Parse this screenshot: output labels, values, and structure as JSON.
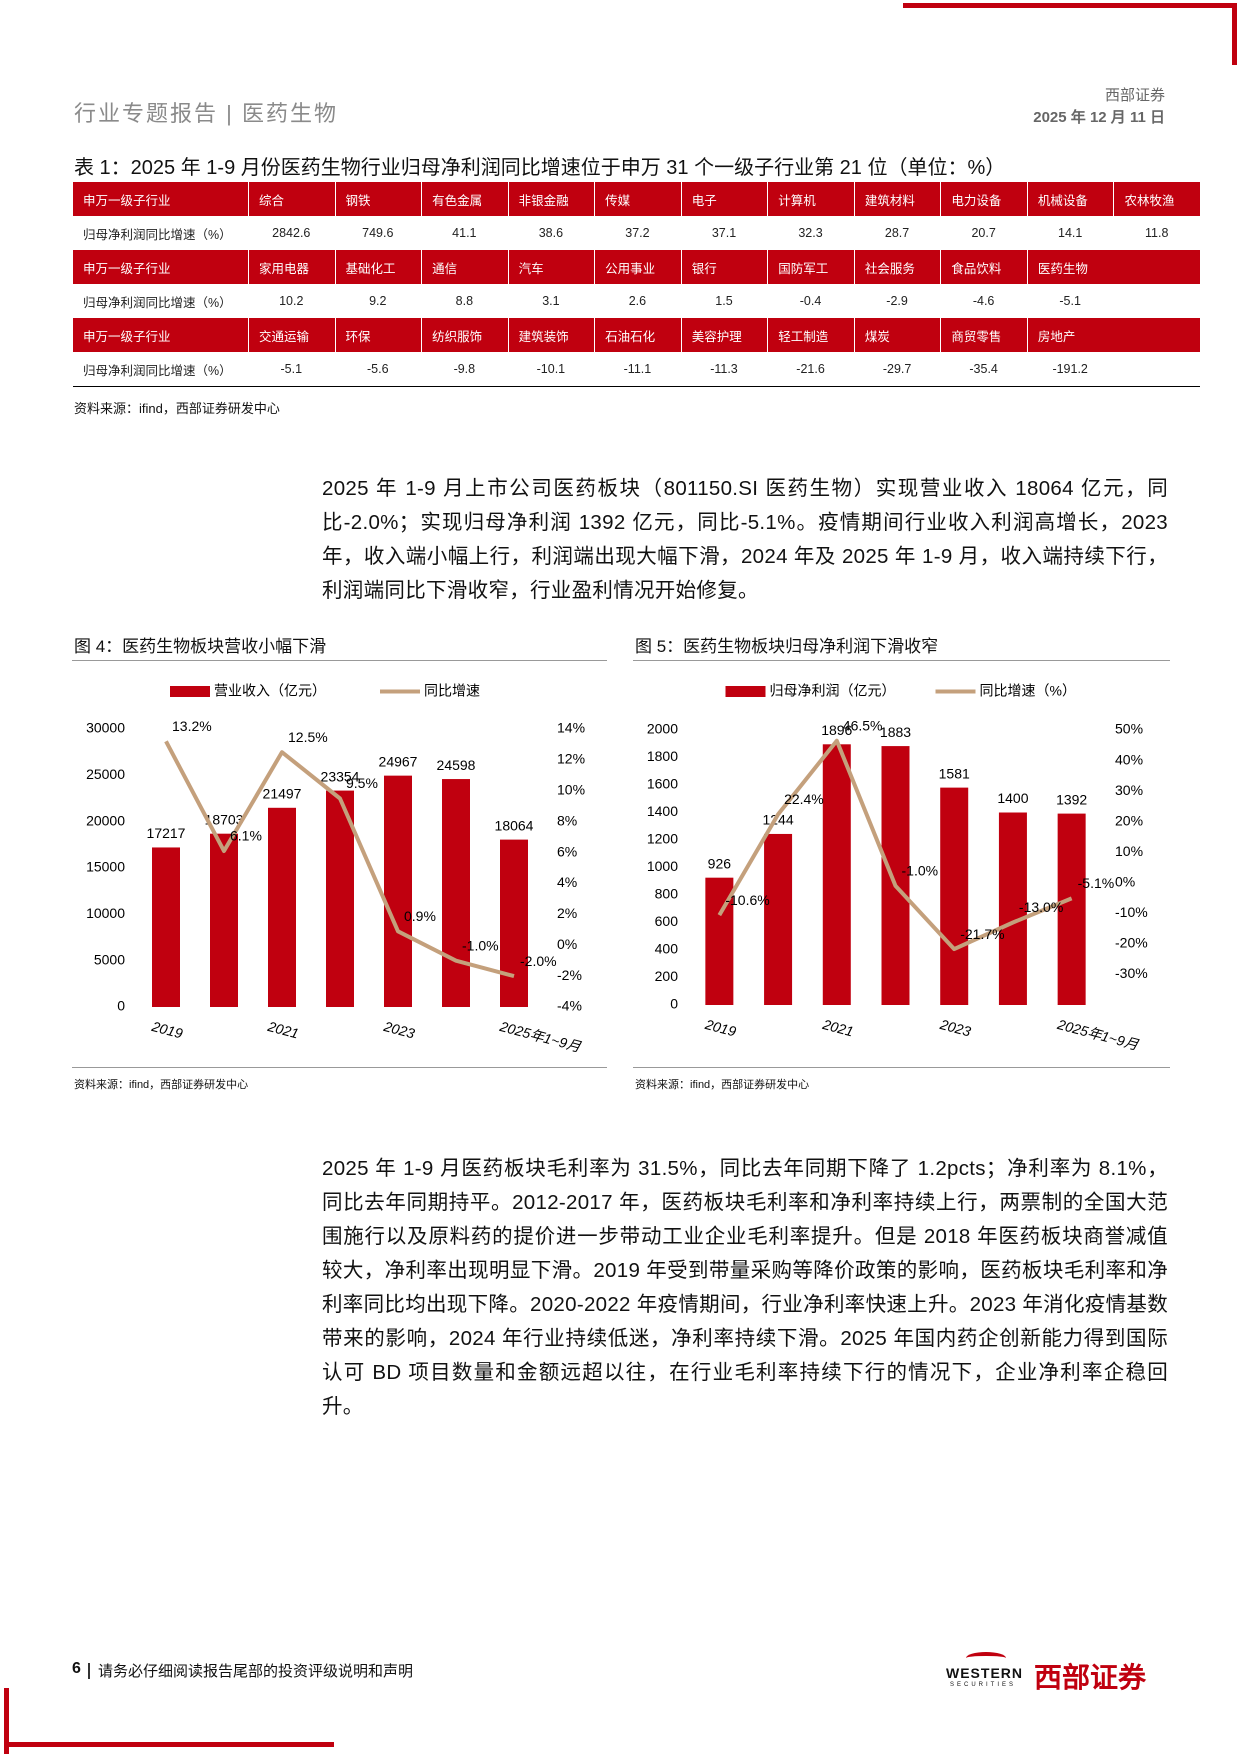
{
  "header": {
    "title": "行业专题报告 | 医药生物",
    "company": "西部证券",
    "date": "2025 年 12 月 11 日"
  },
  "table": {
    "caption": "表 1：2025 年 1-9 月份医药生物行业归母净利润同比增速位于申万 31 个一级子行业第 21 位（单位：%）",
    "blocks": [
      {
        "header": "申万一级子行业",
        "industries": [
          "综合",
          "钢铁",
          "有色金属",
          "非银金融",
          "传媒",
          "电子",
          "计算机",
          "建筑材料",
          "电力设备",
          "机械设备",
          "农林牧渔"
        ],
        "value_header": "归母净利润同比增速（%）",
        "values": [
          2842.6,
          749.6,
          41.1,
          38.6,
          37.2,
          37.1,
          32.3,
          28.7,
          20.7,
          14.1,
          11.8
        ]
      },
      {
        "header": "申万一级子行业",
        "industries": [
          "家用电器",
          "基础化工",
          "通信",
          "汽车",
          "公用事业",
          "银行",
          "国防军工",
          "社会服务",
          "食品饮料",
          "医药生物"
        ],
        "value_header": "归母净利润同比增速（%）",
        "values": [
          10.2,
          9.2,
          8.8,
          3.1,
          2.6,
          1.5,
          -0.4,
          -2.9,
          -4.6,
          -5.1
        ]
      },
      {
        "header": "申万一级子行业",
        "industries": [
          "交通运输",
          "环保",
          "纺织服饰",
          "建筑装饰",
          "石油石化",
          "美容护理",
          "轻工制造",
          "煤炭",
          "商贸零售",
          "房地产"
        ],
        "value_header": "归母净利润同比增速（%）",
        "values": [
          -5.1,
          -5.6,
          -9.8,
          -10.1,
          -11.1,
          -11.3,
          -21.6,
          -29.7,
          -35.4,
          -191.2
        ]
      }
    ],
    "source": "资料来源：ifind，西部证券研发中心"
  },
  "paragraphs": [
    "2025 年 1-9 月上市公司医药板块（801150.SI 医药生物）实现营业收入 18064 亿元，同比-2.0%；实现归母净利润 1392 亿元，同比-5.1%。疫情期间行业收入利润高增长，2023 年，收入端小幅上行，利润端出现大幅下滑，2024 年及 2025 年 1-9 月，收入端持续下行，利润端同比下滑收窄，行业盈利情况开始修复。",
    "2025 年 1-9 月医药板块毛利率为 31.5%，同比去年同期下降了 1.2pcts；净利率为 8.1%，同比去年同期持平。2012-2017 年，医药板块毛利率和净利率持续上行，两票制的全国大范围施行以及原料药的提价进一步带动工业企业毛利率提升。但是 2018 年医药板块商誉减值较大，净利率出现明显下滑。2019 年受到带量采购等降价政策的影响，医药板块毛利率和净利率同比均出现下降。2020-2022 年疫情期间，行业净利率快速上升。2023 年消化疫情基数带来的影响，2024 年行业持续低迷，净利率持续下滑。2025 年国内药企创新能力得到国际认可 BD 项目数量和金额远超以往，在行业毛利率持续下行的情况下，企业净利率企稳回升。"
  ],
  "chart_data": [
    {
      "type": "combo",
      "title": "图 4：医药生物板块营收小幅下滑",
      "source": "资料来源：ifind，西部证券研发中心",
      "categories": [
        "2019",
        null,
        "2021",
        null,
        "2023",
        null,
        "2025年1~9月"
      ],
      "series": [
        {
          "name": "营业收入（亿元）",
          "type": "bar",
          "color": "#c0000f",
          "values": [
            17217,
            18703,
            21497,
            23354,
            24967,
            24598,
            18064
          ]
        },
        {
          "name": "同比增速",
          "type": "line",
          "axis": "y2",
          "color": "#c4a07c",
          "values": [
            13.2,
            6.1,
            12.5,
            9.5,
            0.9,
            -1.0,
            -2.0
          ],
          "value_labels": [
            "13.2%",
            "6.1%",
            "12.5%",
            "9.5%",
            "0.9%",
            "-1.0%",
            "-2.0%"
          ]
        }
      ],
      "ylim": [
        0,
        30000
      ],
      "yticks": [
        0,
        5000,
        10000,
        15000,
        20000,
        25000,
        30000
      ],
      "y2lim": [
        -4,
        14
      ],
      "y2ticks": [
        {
          "value": -4,
          "label": "-4%"
        },
        {
          "value": -2,
          "label": "-2%"
        },
        {
          "value": 0,
          "label": "0%"
        },
        {
          "value": 2,
          "label": "2%"
        },
        {
          "value": 4,
          "label": "4%"
        },
        {
          "value": 6,
          "label": "6%"
        },
        {
          "value": 8,
          "label": "8%"
        },
        {
          "value": 10,
          "label": "10%"
        },
        {
          "value": 12,
          "label": "12%"
        },
        {
          "value": 14,
          "label": "14%"
        }
      ]
    },
    {
      "type": "combo",
      "title": "图 5：医药生物板块归母净利润下滑收窄",
      "source": "资料来源：ifind，西部证券研发中心",
      "categories": [
        "2019",
        null,
        "2021",
        null,
        "2023",
        null,
        "2025年1~9月"
      ],
      "series": [
        {
          "name": "归母净利润（亿元）",
          "type": "bar",
          "color": "#c0000f",
          "values": [
            926,
            1244,
            1896,
            1883,
            1581,
            1400,
            1392
          ]
        },
        {
          "name": "同比增速（%）",
          "type": "line",
          "axis": "y2",
          "color": "#c4a07c",
          "values": [
            -10.6,
            22.4,
            46.5,
            -1.0,
            -21.7,
            -13.0,
            -5.1
          ],
          "value_labels": [
            "-10.6%",
            "22.4%",
            "46.5%",
            "-1.0%",
            "-21.7%",
            "-13.0%",
            "-5.1%"
          ]
        }
      ],
      "ylim": [
        0,
        2000
      ],
      "yticks": [
        0,
        200,
        400,
        600,
        800,
        1000,
        1200,
        1400,
        1600,
        1800,
        2000
      ],
      "y2lim": [
        -40,
        50
      ],
      "y2ticks": [
        {
          "value": -30,
          "label": "-30%"
        },
        {
          "value": -20,
          "label": "-20%"
        },
        {
          "value": -10,
          "label": "-10%"
        },
        {
          "value": 0,
          "label": "0%"
        },
        {
          "value": 10,
          "label": "10%"
        },
        {
          "value": 20,
          "label": "20%"
        },
        {
          "value": 30,
          "label": "30%"
        },
        {
          "value": 40,
          "label": "40%"
        },
        {
          "value": 50,
          "label": "50%"
        }
      ]
    }
  ],
  "footer": {
    "page": "6",
    "note": "请务必仔细阅读报告尾部的投资评级说明和声明",
    "logo_en": "WESTERN",
    "logo_sub": "SECURITIES",
    "logo_cn": "西部证券"
  }
}
